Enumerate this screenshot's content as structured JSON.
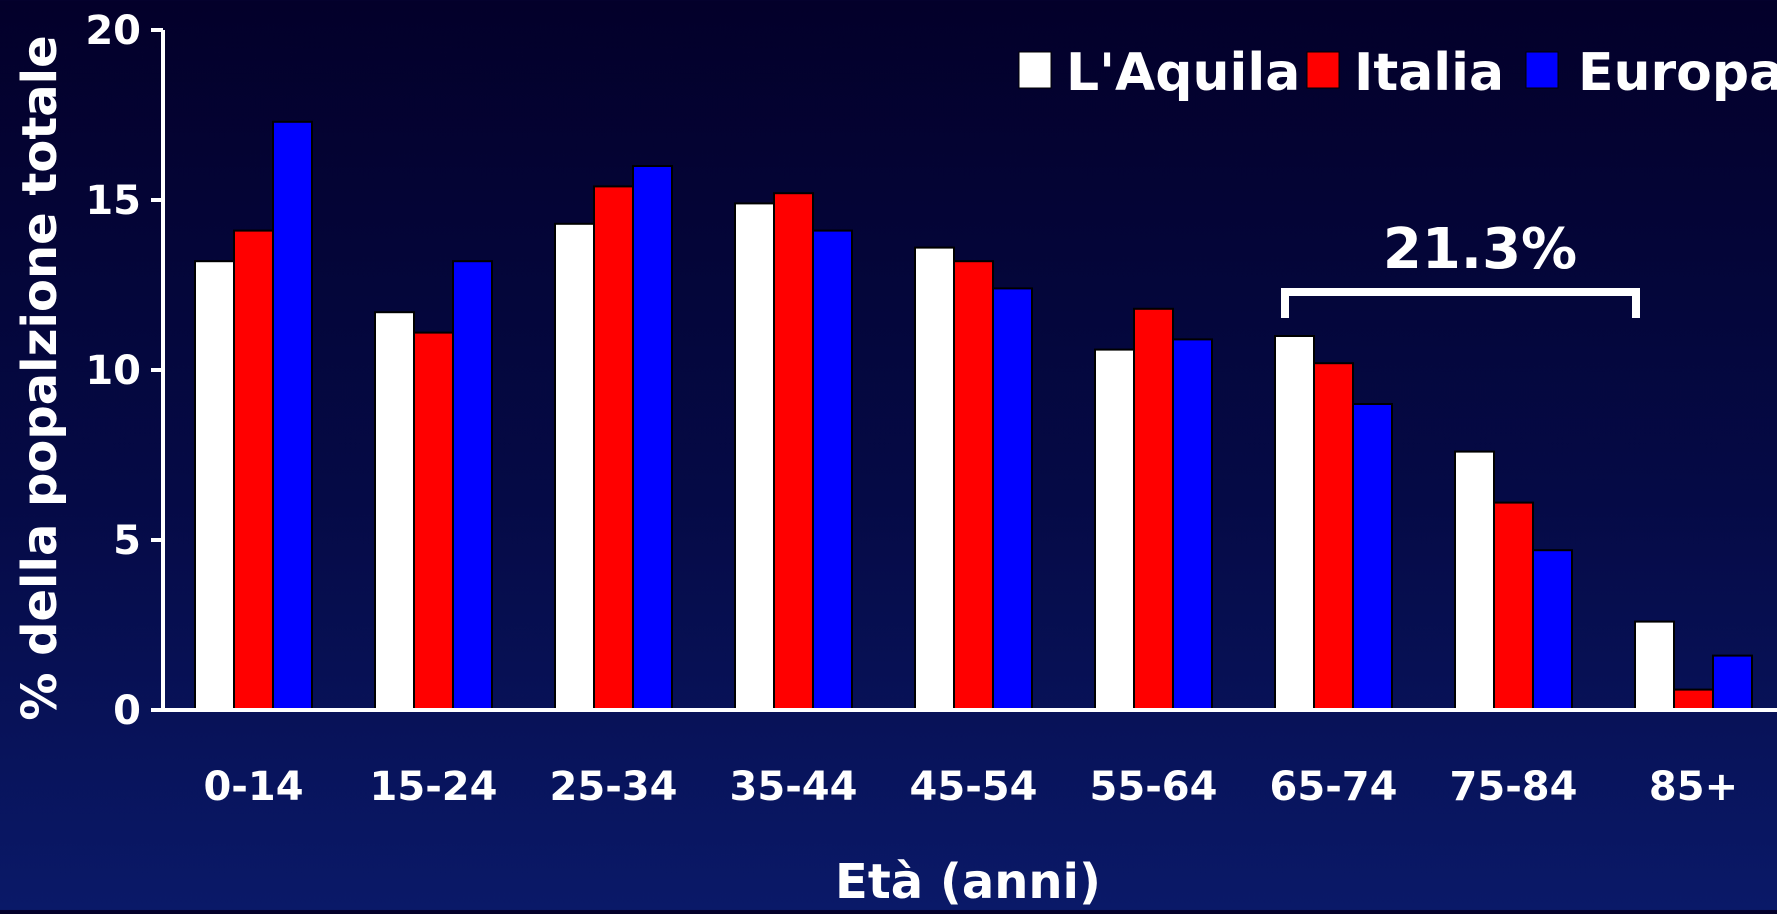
{
  "chart_data": {
    "type": "bar",
    "title": "",
    "xlabel": "Età (anni)",
    "ylabel": "% della popalzione totale",
    "ylim": [
      0,
      20
    ],
    "yticks": [
      "0",
      "5",
      "10",
      "15",
      "20"
    ],
    "grid": false,
    "legend_position": "top-right",
    "categories": [
      "0-14",
      "15-24",
      "25-34",
      "35-44",
      "45-54",
      "55-64",
      "65-74",
      "75-84",
      "85+"
    ],
    "series": [
      {
        "name": "L'Aquila",
        "color": "#ffffff",
        "values": [
          13.2,
          11.7,
          14.3,
          14.9,
          13.6,
          10.6,
          11.0,
          7.6,
          2.6
        ]
      },
      {
        "name": "Italia",
        "color": "#ff0000",
        "values": [
          14.1,
          11.1,
          15.4,
          15.2,
          13.2,
          11.8,
          10.2,
          6.1,
          0.6
        ]
      },
      {
        "name": "Europa",
        "color": "#0000ff",
        "values": [
          17.3,
          13.2,
          16.0,
          14.1,
          12.4,
          10.9,
          9.0,
          4.7,
          1.6
        ]
      }
    ],
    "annotation": {
      "label": "21.3%",
      "from_category": "65-74",
      "to_category": "85+"
    }
  }
}
